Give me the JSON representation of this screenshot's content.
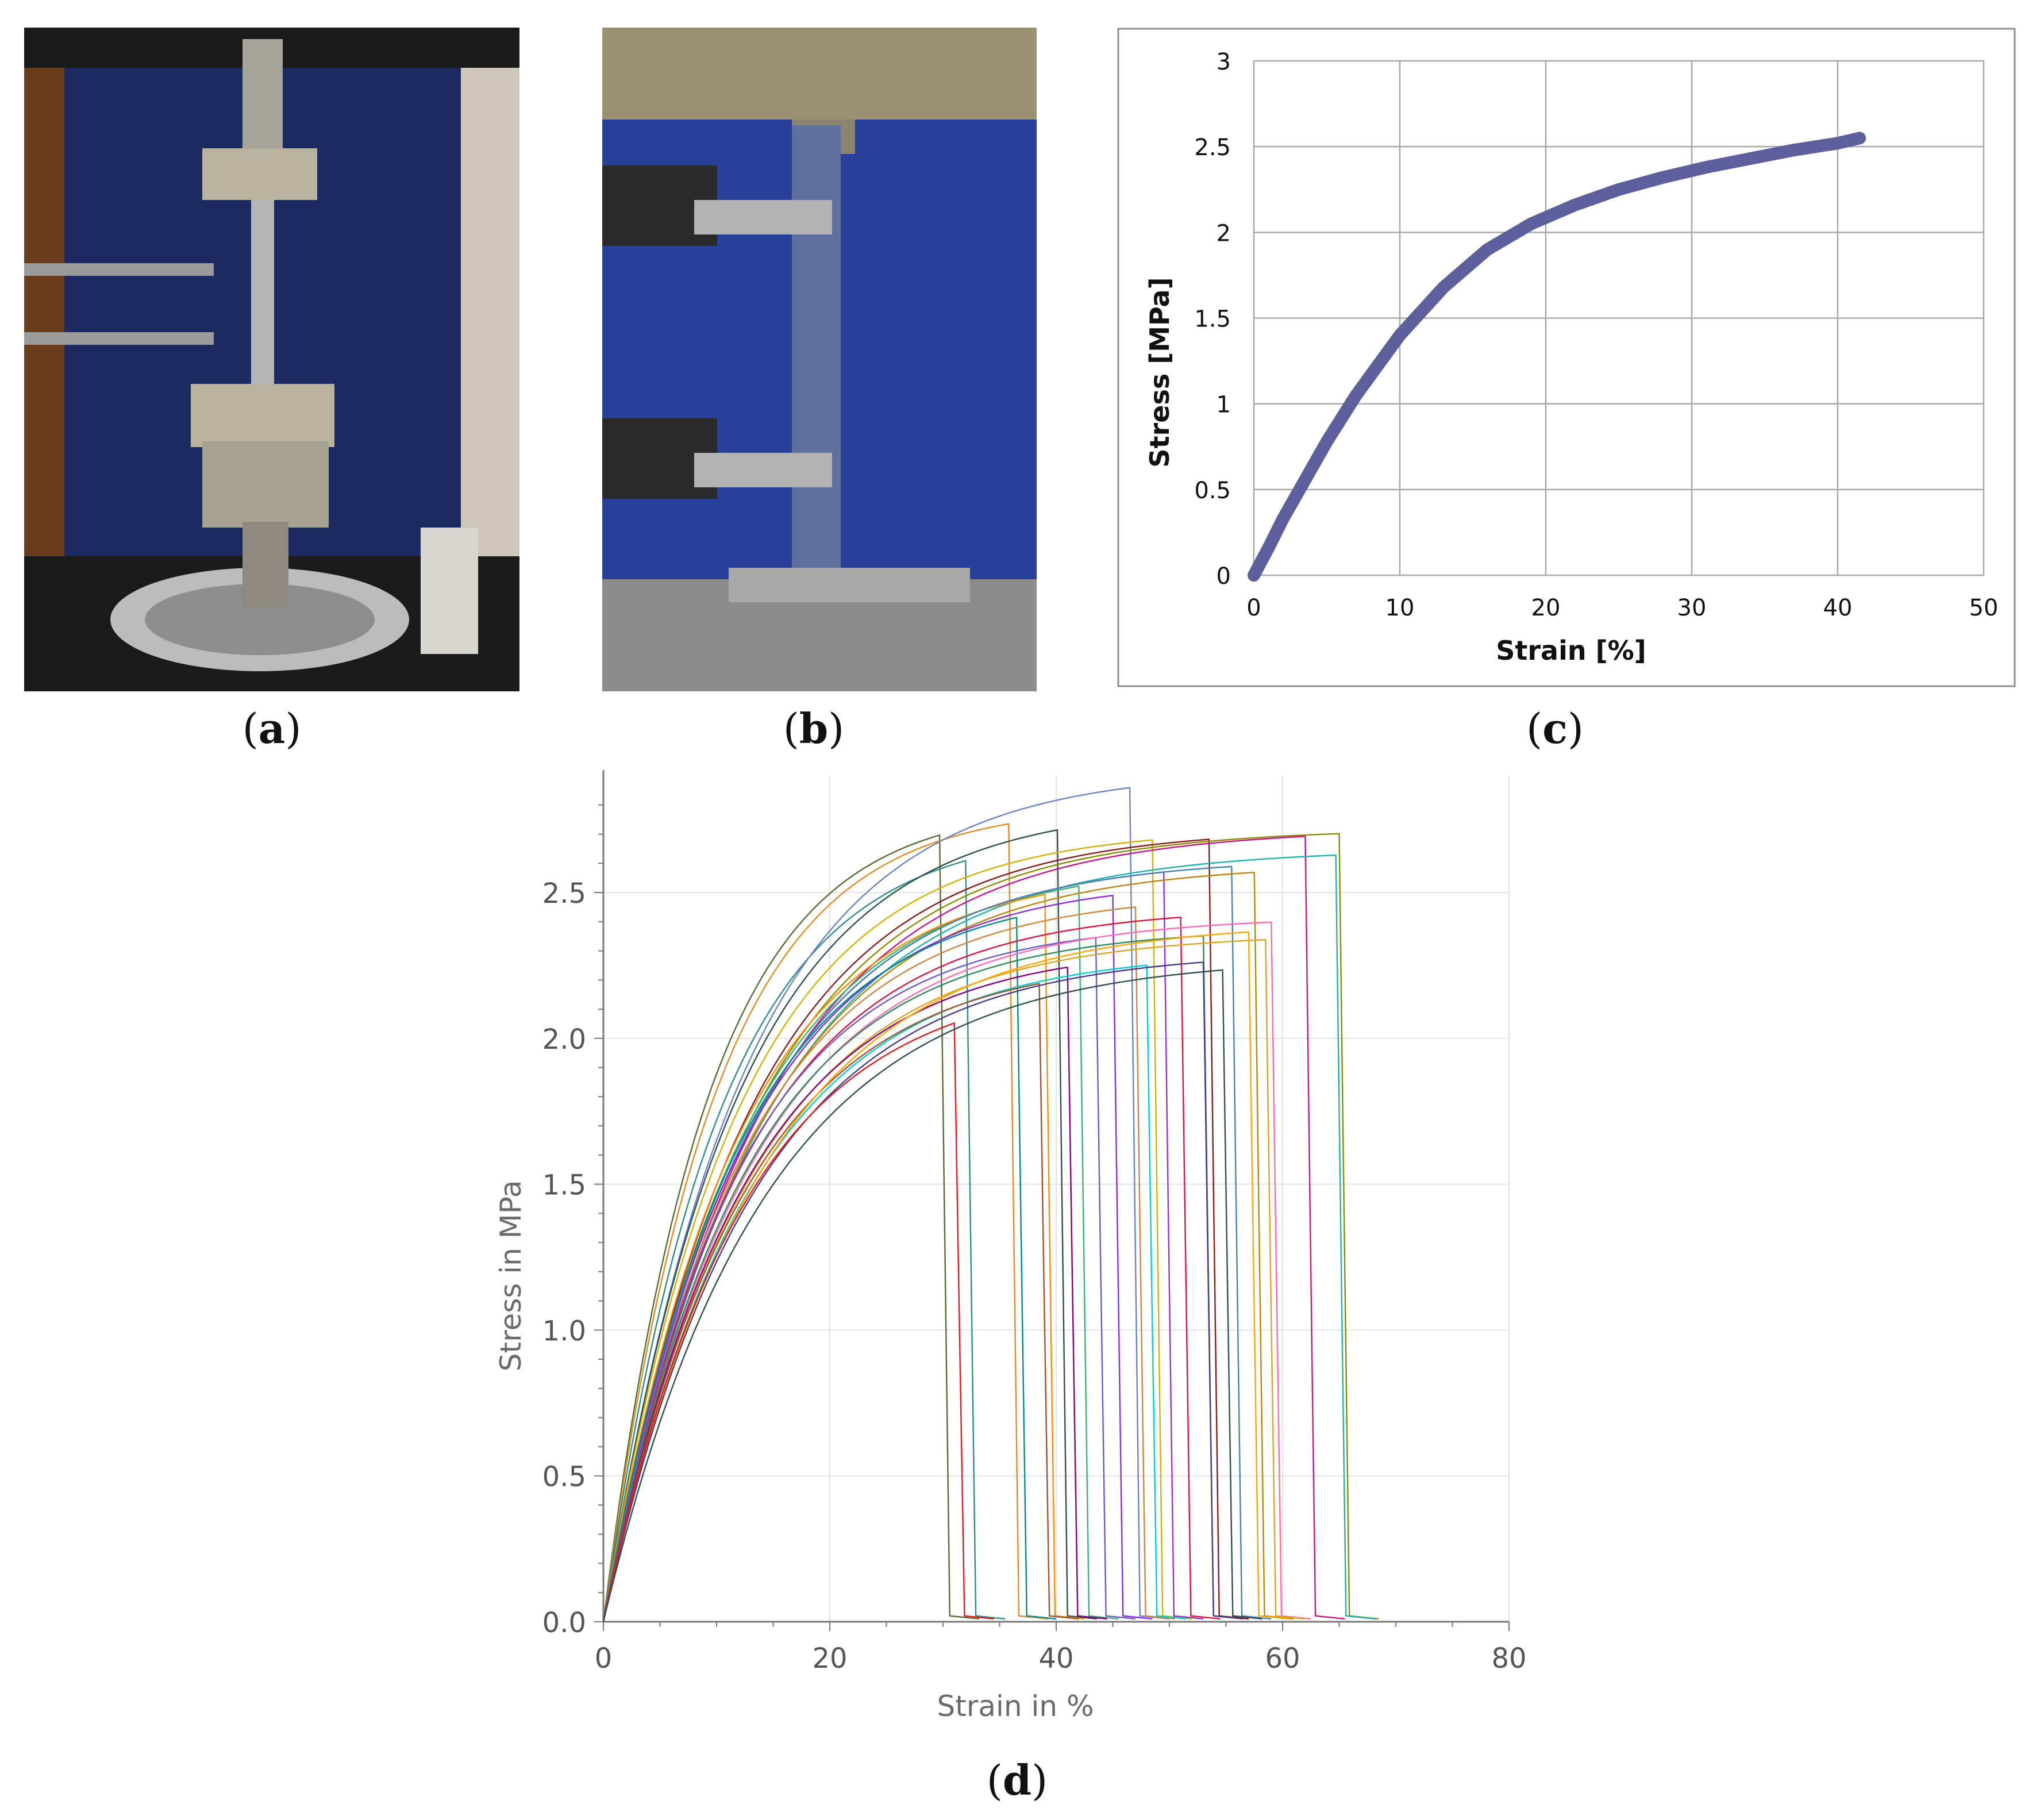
{
  "captions": {
    "a": "a",
    "b": "b",
    "c": "c",
    "d": "d"
  },
  "photos": {
    "a": {
      "icon": "tensile-testing-machine-photo"
    },
    "b": {
      "icon": "specimen-grips-closeup-photo"
    }
  },
  "colors": {
    "chart_c_line": "#5d5f9c",
    "grid": "#a8a8a8",
    "frame": "#8c8c8c"
  },
  "chart_data": [
    {
      "id": "c",
      "type": "line",
      "title": "",
      "xlabel": "Strain [%]",
      "ylabel": "Stress [MPa]",
      "xlim": [
        0,
        50
      ],
      "ylim": [
        0,
        3
      ],
      "xticks": [
        "0",
        "10",
        "20",
        "30",
        "40",
        "50"
      ],
      "yticks": [
        "0",
        "0.5",
        "1",
        "1.5",
        "2",
        "2.5",
        "3"
      ],
      "grid": true,
      "series": [
        {
          "x": [
            0,
            1,
            2,
            3,
            5,
            7,
            10,
            13,
            16,
            19,
            22,
            25,
            28,
            31,
            34,
            37,
            40,
            41.5
          ],
          "y": [
            0,
            0.16,
            0.33,
            0.48,
            0.78,
            1.05,
            1.4,
            1.68,
            1.9,
            2.05,
            2.16,
            2.25,
            2.32,
            2.38,
            2.43,
            2.48,
            2.52,
            2.55
          ]
        }
      ]
    },
    {
      "id": "d",
      "type": "line",
      "title": "",
      "xlabel": "Strain in %",
      "ylabel": "Stress in MPa",
      "xlim": [
        0,
        80
      ],
      "ylim": [
        0,
        2.9
      ],
      "xticks": [
        "0",
        "20",
        "40",
        "60",
        "80"
      ],
      "yticks": [
        "0.0",
        "0.5",
        "1.0",
        "1.5",
        "2.0",
        "2.5"
      ],
      "grid": true,
      "curve_model": "stress = a * (1 - exp(-strain / b)), followed by a drop to zero at break strain",
      "series": [
        {
          "a": 2.8,
          "b": 9.0,
          "break": 29.7,
          "color": "#556b2f"
        },
        {
          "a": 2.8,
          "b": 9.5,
          "break": 35.8,
          "color": "#e38b22"
        },
        {
          "a": 2.72,
          "b": 10.0,
          "break": 32.0,
          "color": "#2e8b8b"
        },
        {
          "a": 2.92,
          "b": 12.0,
          "break": 46.5,
          "color": "#6b83c4"
        },
        {
          "a": 2.8,
          "b": 11.5,
          "break": 40.1,
          "color": "#2f4f4f"
        },
        {
          "a": 2.72,
          "b": 11.5,
          "break": 48.5,
          "color": "#d4b000"
        },
        {
          "a": 2.72,
          "b": 12.5,
          "break": 53.5,
          "color": "#8b1a1a"
        },
        {
          "a": 2.72,
          "b": 13.0,
          "break": 65.0,
          "color": "#8b8b00"
        },
        {
          "a": 2.72,
          "b": 13.5,
          "break": 62.0,
          "color": "#c71585"
        },
        {
          "a": 2.65,
          "b": 13.5,
          "break": 64.7,
          "color": "#20b2aa"
        },
        {
          "a": 2.62,
          "b": 12.5,
          "break": 49.5,
          "color": "#9932cc"
        },
        {
          "a": 2.6,
          "b": 12.0,
          "break": 42.0,
          "color": "#3cb371"
        },
        {
          "a": 2.58,
          "b": 11.5,
          "break": 39.0,
          "color": "#ff8c00"
        },
        {
          "a": 2.62,
          "b": 12.5,
          "break": 55.5,
          "color": "#4682b4"
        },
        {
          "a": 2.6,
          "b": 13.0,
          "break": 57.5,
          "color": "#b8860b"
        },
        {
          "a": 2.55,
          "b": 12.0,
          "break": 45.0,
          "color": "#8a2be2"
        },
        {
          "a": 2.52,
          "b": 11.5,
          "break": 36.5,
          "color": "#008b8b"
        },
        {
          "a": 2.5,
          "b": 12.0,
          "break": 47.0,
          "color": "#cd853f"
        },
        {
          "a": 2.45,
          "b": 12.0,
          "break": 51.0,
          "color": "#dc143c"
        },
        {
          "a": 2.4,
          "b": 11.5,
          "break": 43.5,
          "color": "#6a5acd"
        },
        {
          "a": 2.42,
          "b": 12.5,
          "break": 59.0,
          "color": "#ff69b4"
        },
        {
          "a": 2.38,
          "b": 12.0,
          "break": 53.0,
          "color": "#2e8b57"
        },
        {
          "a": 2.36,
          "b": 12.5,
          "break": 58.5,
          "color": "#daa520"
        },
        {
          "a": 2.32,
          "b": 12.0,
          "break": 41.0,
          "color": "#800080"
        },
        {
          "a": 2.3,
          "b": 12.5,
          "break": 48.0,
          "color": "#00ced1"
        },
        {
          "a": 2.28,
          "b": 12.0,
          "break": 38.5,
          "color": "#a0522d"
        },
        {
          "a": 2.4,
          "b": 13.5,
          "break": 57.0,
          "color": "#ffa500"
        },
        {
          "a": 2.3,
          "b": 13.0,
          "break": 53.0,
          "color": "#483d8b"
        },
        {
          "a": 2.22,
          "b": 12.0,
          "break": 31.0,
          "color": "#e31a1c"
        },
        {
          "a": 2.28,
          "b": 14.0,
          "break": 54.7,
          "color": "#2f4f4f"
        }
      ]
    }
  ]
}
